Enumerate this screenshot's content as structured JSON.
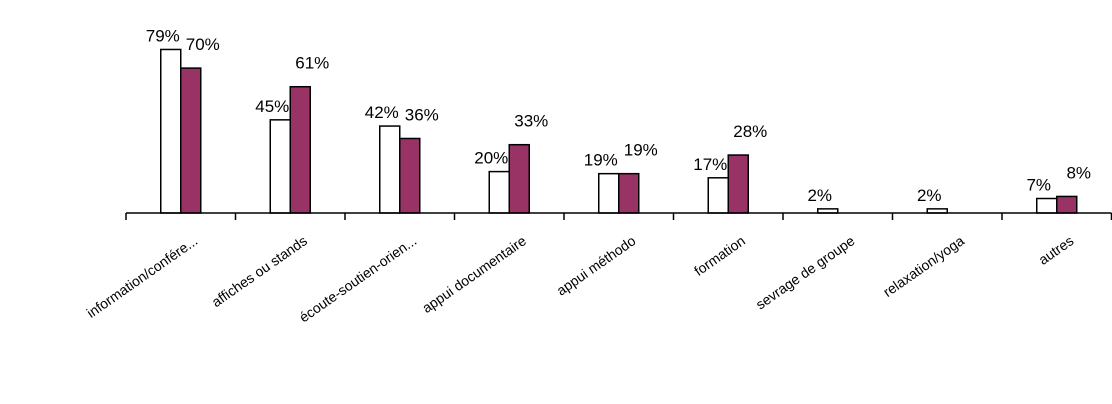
{
  "chart_data": {
    "type": "bar",
    "categories": [
      "information/confére...",
      "affiches ou stands",
      "écoute-soutien-orien...",
      "appui documentaire",
      "appui méthodo",
      "formation",
      "sevrage de groupe",
      "relaxation/yoga",
      "autres"
    ],
    "series": [
      {
        "values": [
          79,
          45,
          42,
          20,
          19,
          17,
          2,
          2,
          7
        ],
        "labels": [
          "79%",
          "45%",
          "42%",
          "20%",
          "19%",
          "17%",
          "2%",
          "2%",
          "7%"
        ],
        "fill": "#ffffff",
        "stroke": "#000000"
      },
      {
        "values": [
          70,
          61,
          36,
          33,
          19,
          28,
          0,
          0,
          8
        ],
        "labels": [
          "70%",
          "61%",
          "36%",
          "33%",
          "19%",
          "28%",
          "",
          "",
          "8%"
        ],
        "fill": "#993366",
        "stroke": "#000000"
      }
    ],
    "ylim": [
      0,
      80
    ],
    "grid": false,
    "legend": "none"
  }
}
